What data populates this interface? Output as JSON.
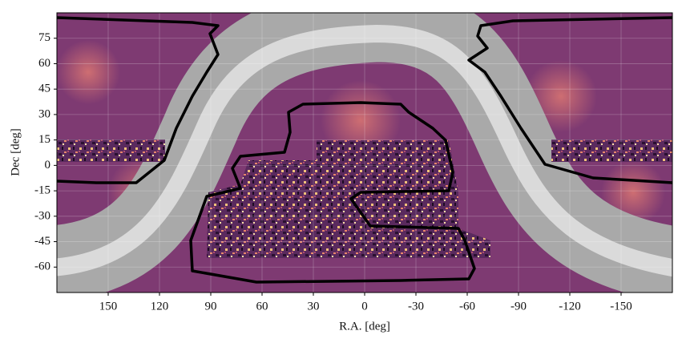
{
  "chart_data": {
    "type": "skymap",
    "x_label": "R.A. [deg]",
    "y_label": "Dec [deg]",
    "xlim": [
      180,
      -180
    ],
    "xticks": [
      150,
      120,
      90,
      60,
      30,
      0,
      -30,
      -60,
      -90,
      -120,
      -150
    ],
    "ylim": [
      -75,
      90
    ],
    "yticks": [
      -60,
      -45,
      -30,
      -15,
      0,
      15,
      30,
      45,
      60,
      75
    ],
    "grid": true
  }
}
